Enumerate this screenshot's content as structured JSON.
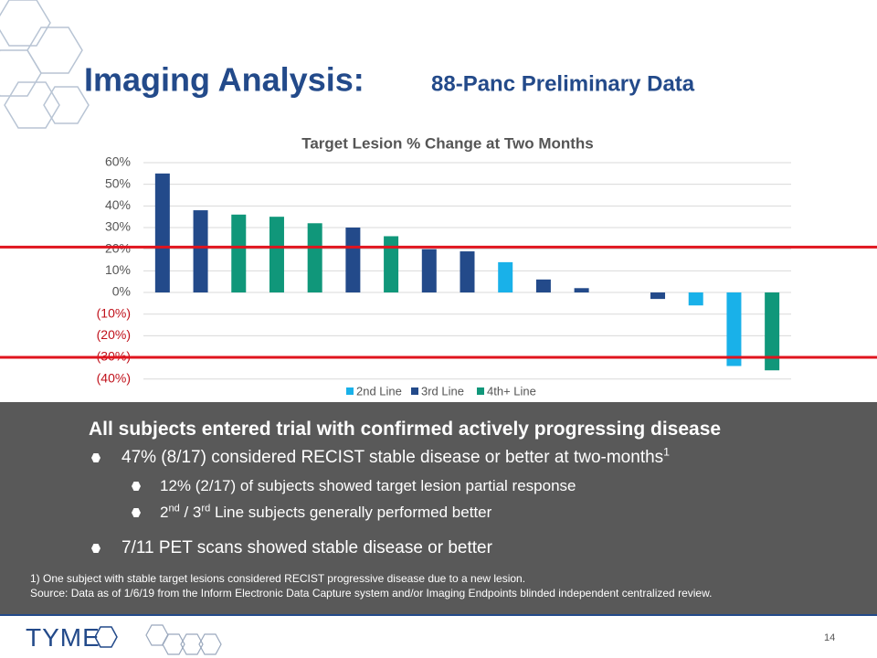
{
  "slide": {
    "title": "Imaging Analysis:",
    "subtitle": "88-Panc Preliminary Data",
    "heading": "All subjects entered trial with confirmed actively progressing disease",
    "bullets": [
      {
        "level": 1,
        "parts": [
          {
            "text": "47% (8/17) considered RECIST stable disease or better at two-months"
          },
          {
            "sup": "1"
          }
        ]
      },
      {
        "level": 2,
        "parts": [
          {
            "text": "12% (2/17) of subjects showed target lesion partial response"
          }
        ]
      },
      {
        "level": 2,
        "parts": [
          {
            "text": "2"
          },
          {
            "sup": "nd"
          },
          {
            "text": " / 3"
          },
          {
            "sup": "rd"
          },
          {
            "text": " Line subjects generally performed better"
          }
        ]
      },
      {
        "level": 1,
        "parts": [
          {
            "text": "7/11 PET scans showed stable disease or better"
          }
        ]
      }
    ],
    "footnotes": [
      "1) One subject with stable target lesions considered RECIST progressive disease due to a new lesion.",
      "Source: Data as of 1/6/19 from the Inform Electronic Data Capture system and/or Imaging Endpoints blinded independent centralized review."
    ],
    "logo": "TYME",
    "page_number": "14"
  },
  "chart_data": {
    "type": "bar",
    "title": "Target Lesion % Change at Two Months",
    "categories": [
      null,
      null,
      null,
      null,
      null,
      null,
      null,
      null,
      null,
      null,
      null,
      null,
      null,
      null,
      null,
      null,
      null
    ],
    "series": [
      {
        "name": "2nd Line",
        "color": "#19b1e9",
        "values": [
          null,
          null,
          null,
          null,
          null,
          null,
          null,
          null,
          null,
          14,
          null,
          null,
          null,
          null,
          -6,
          -34,
          null
        ]
      },
      {
        "name": "3rd Line",
        "color": "#234a8a",
        "values": [
          55,
          38,
          null,
          null,
          null,
          30,
          null,
          20,
          19,
          null,
          6,
          2,
          null,
          -3,
          null,
          null,
          null
        ]
      },
      {
        "name": "4th+ Line",
        "color": "#10977a",
        "values": [
          null,
          null,
          36,
          35,
          32,
          null,
          26,
          null,
          null,
          null,
          null,
          null,
          0,
          null,
          null,
          null,
          -36
        ]
      }
    ],
    "ylim": [
      -40,
      60
    ],
    "yticks": [
      {
        "value": -40,
        "label": "(40%)"
      },
      {
        "value": -30,
        "label": "(30%)"
      },
      {
        "value": -20,
        "label": "(20%)"
      },
      {
        "value": -10,
        "label": "(10%)"
      },
      {
        "value": 0,
        "label": "0%"
      },
      {
        "value": 10,
        "label": "10%"
      },
      {
        "value": 20,
        "label": "20%"
      },
      {
        "value": 30,
        "label": "30%"
      },
      {
        "value": 40,
        "label": "40%"
      },
      {
        "value": 50,
        "label": "50%"
      },
      {
        "value": 60,
        "label": "60%"
      }
    ],
    "grid": true,
    "reference_lines": [
      {
        "value": 21,
        "color": "#e0141e"
      },
      {
        "value": -30,
        "color": "#e0141e"
      }
    ],
    "legend": "bottom"
  }
}
